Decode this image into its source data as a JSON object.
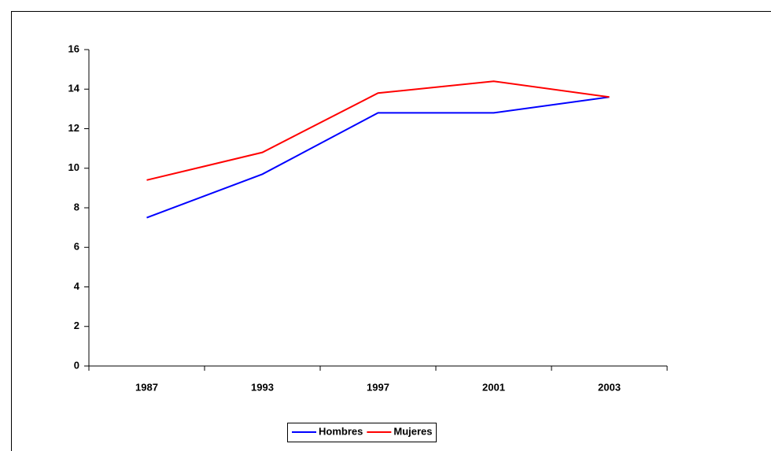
{
  "chart_data": {
    "type": "line",
    "categories": [
      "1987",
      "1993",
      "1997",
      "2001",
      "2003"
    ],
    "series": [
      {
        "name": "Hombres",
        "color": "#0000ff",
        "values": [
          7.5,
          9.7,
          12.8,
          12.8,
          13.6
        ]
      },
      {
        "name": "Mujeres",
        "color": "#ff0000",
        "values": [
          9.4,
          10.8,
          13.8,
          14.4,
          13.6
        ]
      }
    ],
    "ylim": [
      0,
      16
    ],
    "yticks": [
      0,
      2,
      4,
      6,
      8,
      10,
      12,
      14,
      16
    ],
    "grid": false,
    "legend": "bottom"
  }
}
